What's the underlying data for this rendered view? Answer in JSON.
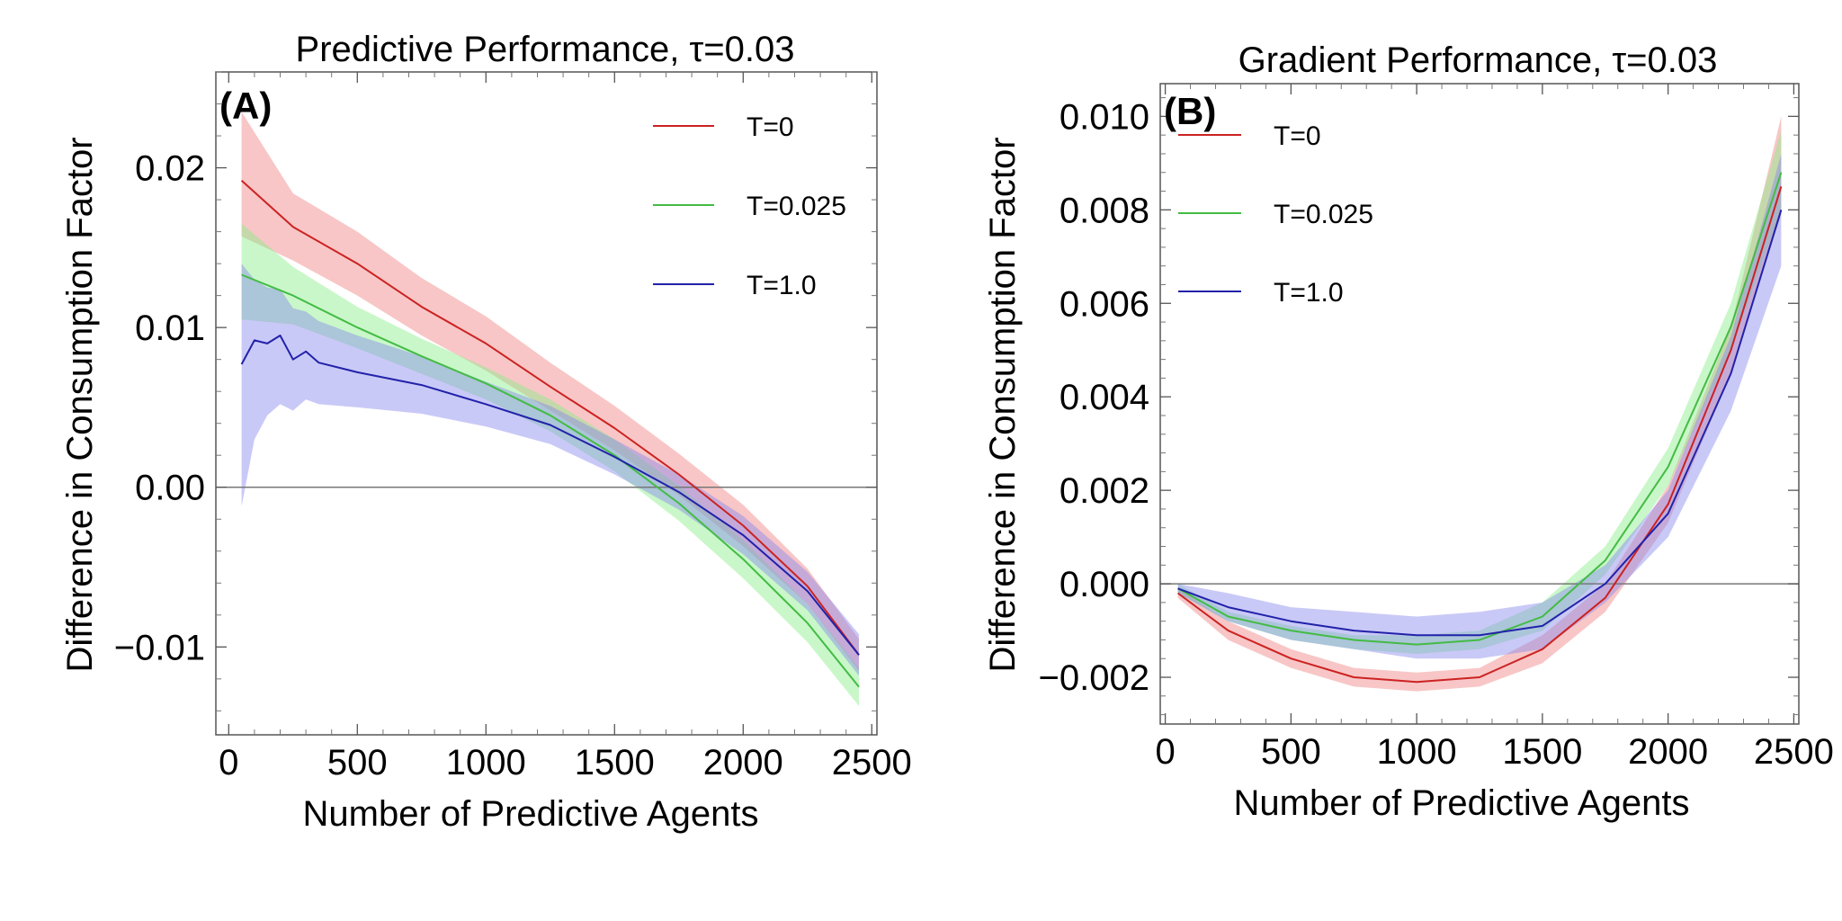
{
  "chart_data": [
    {
      "panel": "A",
      "type": "line",
      "title": "Predictive Performance, τ=0.03",
      "panel_label": "(A)",
      "xlabel": "Number of Predictive Agents",
      "ylabel": "Difference in Consumption Factor",
      "xlim": [
        -50,
        2520
      ],
      "ylim": [
        -0.0155,
        0.026
      ],
      "xticks": [
        0,
        500,
        1000,
        1500,
        2000,
        2500
      ],
      "xtick_labels": [
        "0",
        "500",
        "1000",
        "1500",
        "2000",
        "2500"
      ],
      "yticks": [
        -0.01,
        0.0,
        0.01,
        0.02
      ],
      "ytick_labels": [
        "−0.01",
        "0.00",
        "0.01",
        "0.02"
      ],
      "legend_position": "top-right",
      "reference_line_y": 0,
      "series": [
        {
          "name": "T=0",
          "color": "#cc2222",
          "band_color": "#f08080",
          "x": [
            50,
            250,
            500,
            750,
            1000,
            1250,
            1500,
            1750,
            2000,
            2250,
            2450
          ],
          "y": [
            0.0192,
            0.0163,
            0.014,
            0.0113,
            0.009,
            0.0063,
            0.0037,
            0.0008,
            -0.0024,
            -0.0062,
            -0.0105
          ],
          "lower": [
            0.0157,
            0.0142,
            0.012,
            0.0095,
            0.0073,
            0.0048,
            0.0023,
            -0.0005,
            -0.0037,
            -0.0073,
            -0.0115
          ],
          "upper": [
            0.0235,
            0.0184,
            0.016,
            0.0131,
            0.0107,
            0.0078,
            0.0051,
            0.0021,
            -0.0011,
            -0.0051,
            -0.0095
          ]
        },
        {
          "name": "T=0.025",
          "color": "#44bb44",
          "band_color": "#88ee88",
          "x": [
            50,
            250,
            500,
            750,
            1000,
            1250,
            1500,
            1750,
            2000,
            2250,
            2450
          ],
          "y": [
            0.0133,
            0.012,
            0.01,
            0.0082,
            0.0065,
            0.0045,
            0.002,
            -0.001,
            -0.0045,
            -0.0085,
            -0.0125
          ],
          "lower": [
            0.0105,
            0.0102,
            0.0087,
            0.0071,
            0.0055,
            0.0035,
            0.001,
            -0.0021,
            -0.0057,
            -0.0097,
            -0.0137
          ],
          "upper": [
            0.0165,
            0.0138,
            0.0113,
            0.0093,
            0.0075,
            0.0055,
            0.003,
            0.0001,
            -0.0033,
            -0.0073,
            -0.0113
          ]
        },
        {
          "name": "T=1.0",
          "color": "#2222aa",
          "band_color": "#8888ee",
          "x": [
            50,
            100,
            150,
            200,
            250,
            300,
            350,
            500,
            750,
            1000,
            1250,
            1500,
            1750,
            2000,
            2250,
            2450
          ],
          "y": [
            0.0077,
            0.0092,
            0.009,
            0.0095,
            0.008,
            0.0085,
            0.0078,
            0.0072,
            0.0064,
            0.0052,
            0.0039,
            0.0019,
            -0.0003,
            -0.003,
            -0.0065,
            -0.0105
          ],
          "lower": [
            -0.0012,
            0.003,
            0.0045,
            0.0052,
            0.0048,
            0.0055,
            0.0052,
            0.005,
            0.0046,
            0.0038,
            0.0027,
            0.0008,
            -0.0014,
            -0.0042,
            -0.0077,
            -0.0118
          ],
          "upper": [
            0.014,
            0.013,
            0.0125,
            0.0124,
            0.0112,
            0.011,
            0.0104,
            0.0095,
            0.0082,
            0.0066,
            0.0051,
            0.003,
            0.0008,
            -0.0018,
            -0.0053,
            -0.0092
          ]
        }
      ]
    },
    {
      "panel": "B",
      "type": "line",
      "title": "Gradient Performance, τ=0.03",
      "panel_label": "(B)",
      "xlabel": "Number of Predictive Agents",
      "ylabel": "Difference in Consumption Factor",
      "xlim": [
        -20,
        2520
      ],
      "ylim": [
        -0.003,
        0.0107
      ],
      "xticks": [
        0,
        500,
        1000,
        1500,
        2000,
        2500
      ],
      "xtick_labels": [
        "0",
        "500",
        "1000",
        "1500",
        "2000",
        "2500"
      ],
      "yticks": [
        -0.002,
        0.0,
        0.002,
        0.004,
        0.006,
        0.008,
        0.01
      ],
      "ytick_labels": [
        "−0.002",
        "0.000",
        "0.002",
        "0.004",
        "0.006",
        "0.008",
        "0.010"
      ],
      "legend_position": "top-left",
      "reference_line_y": 0,
      "series": [
        {
          "name": "T=0",
          "color": "#cc2222",
          "band_color": "#f08080",
          "x": [
            50,
            250,
            500,
            750,
            1000,
            1250,
            1500,
            1750,
            2000,
            2250,
            2450
          ],
          "y": [
            -0.0002,
            -0.001,
            -0.0016,
            -0.002,
            -0.0021,
            -0.002,
            -0.0014,
            -0.0003,
            0.0017,
            0.005,
            0.0085
          ],
          "lower": [
            -0.0003,
            -0.0012,
            -0.0018,
            -0.0022,
            -0.0023,
            -0.0022,
            -0.0017,
            -0.0006,
            0.0013,
            0.0045,
            0.0079
          ],
          "upper": [
            -0.0001,
            -0.0008,
            -0.0014,
            -0.0018,
            -0.0019,
            -0.0018,
            -0.0011,
            0.0,
            0.0021,
            0.0055,
            0.01
          ]
        },
        {
          "name": "T=0.025",
          "color": "#44bb44",
          "band_color": "#88ee88",
          "x": [
            50,
            250,
            500,
            750,
            1000,
            1250,
            1500,
            1750,
            2000,
            2250,
            2450
          ],
          "y": [
            -0.0001,
            -0.0007,
            -0.001,
            -0.0012,
            -0.0013,
            -0.0012,
            -0.0007,
            0.0005,
            0.0025,
            0.0055,
            0.0088
          ],
          "lower": [
            -0.0002,
            -0.0008,
            -0.0012,
            -0.0014,
            -0.0015,
            -0.0014,
            -0.001,
            0.0002,
            0.0021,
            0.005,
            0.008
          ],
          "upper": [
            0.0,
            -0.0006,
            -0.0009,
            -0.0011,
            -0.0011,
            -0.001,
            -0.0004,
            0.0008,
            0.0029,
            0.006,
            0.0097
          ]
        },
        {
          "name": "T=1.0",
          "color": "#2222aa",
          "band_color": "#8888ee",
          "x": [
            50,
            250,
            500,
            750,
            1000,
            1250,
            1500,
            1750,
            2000,
            2250,
            2450
          ],
          "y": [
            -0.0001,
            -0.0005,
            -0.0008,
            -0.001,
            -0.0011,
            -0.0011,
            -0.0009,
            0.0,
            0.0015,
            0.0045,
            0.008
          ],
          "lower": [
            -0.0002,
            -0.0008,
            -0.0012,
            -0.0014,
            -0.0016,
            -0.0016,
            -0.0014,
            -0.0004,
            0.001,
            0.0037,
            0.0068
          ],
          "upper": [
            0.0,
            -0.0002,
            -0.0005,
            -0.0006,
            -0.0007,
            -0.0006,
            -0.0004,
            0.0004,
            0.002,
            0.0053,
            0.0092
          ]
        }
      ]
    }
  ]
}
